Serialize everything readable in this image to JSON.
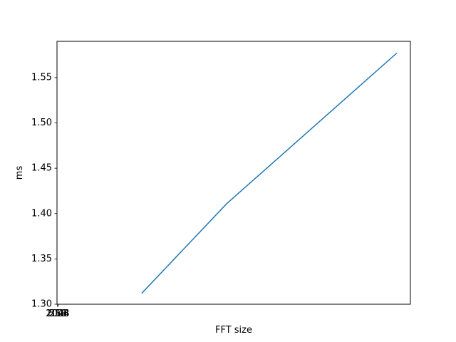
{
  "chart_data": {
    "type": "line",
    "title": "",
    "xlabel": "FFT size",
    "ylabel": "ms",
    "x_tick_labels": [
      "256",
      "512",
      "1024",
      "2048"
    ],
    "x": [
      512,
      1024,
      2048
    ],
    "series": [
      {
        "values": [
          1.312,
          1.411,
          1.577
        ],
        "color": "#1f77b4"
      }
    ],
    "xlim": [
      2,
      2130
    ],
    "ylim": [
      1.3,
      1.59
    ],
    "y_ticks": [
      1.3,
      1.35,
      1.4,
      1.45,
      1.5,
      1.55
    ],
    "y_tick_labels": [
      "1.30",
      "1.35",
      "1.40",
      "1.45",
      "1.50",
      "1.55"
    ],
    "grid": false,
    "legend": "none"
  }
}
